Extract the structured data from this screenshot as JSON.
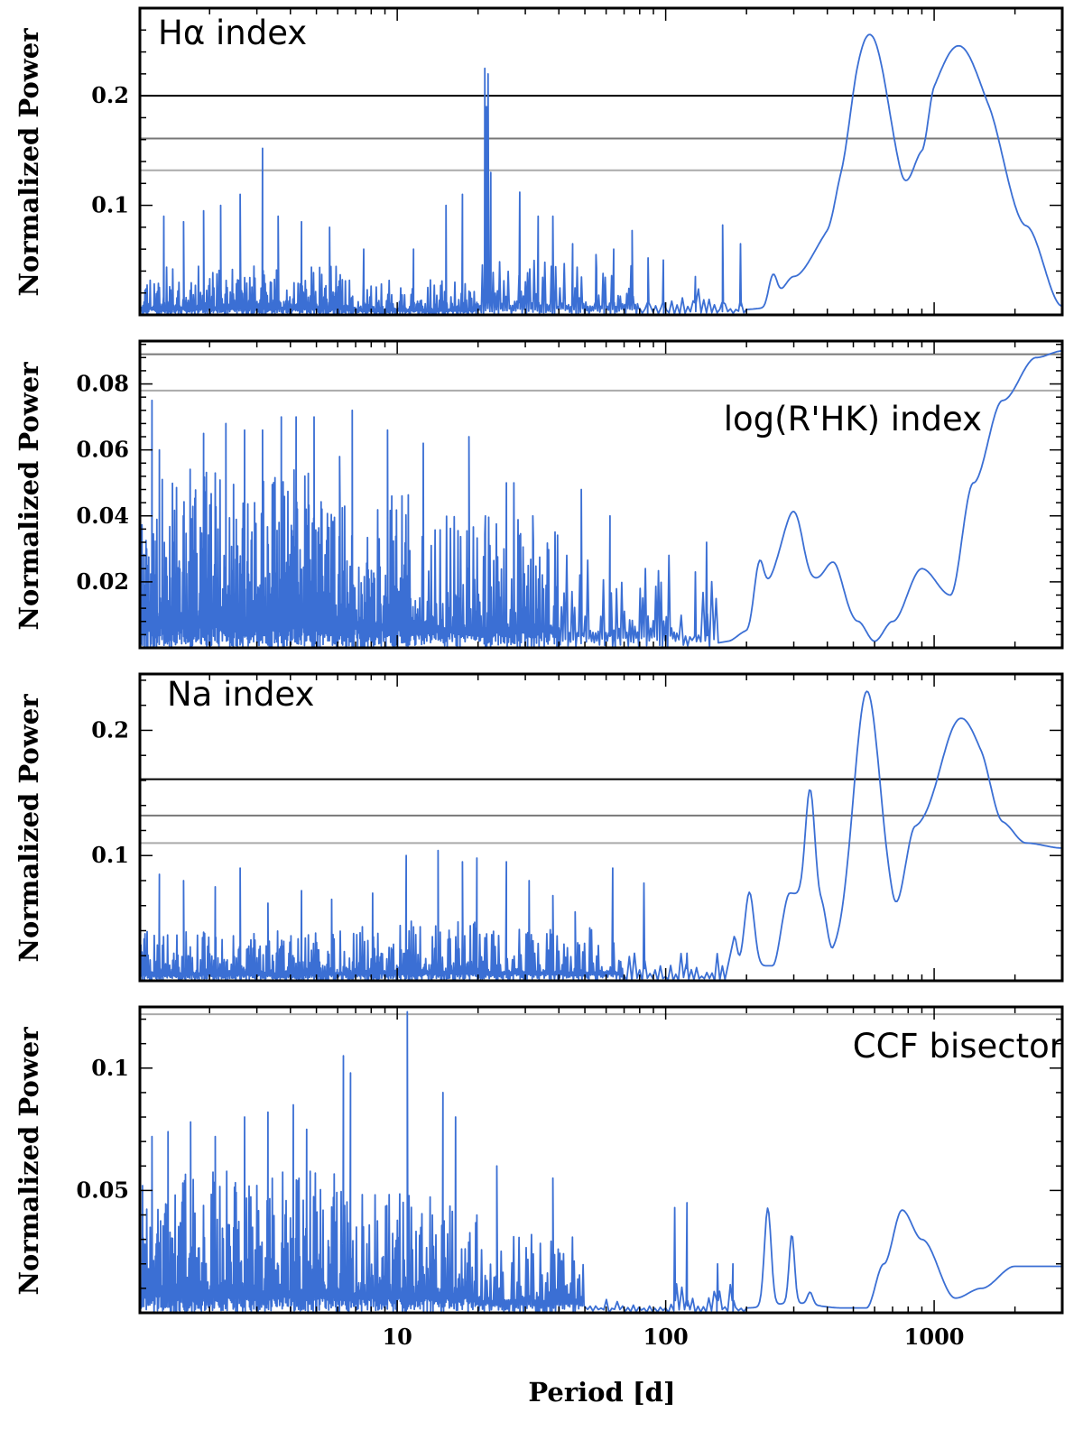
{
  "x_axis": {
    "title": "Period [d]",
    "scale": "log",
    "xlim": [
      1.1,
      3000
    ],
    "tick_labels": [
      {
        "value": 10,
        "label": "10"
      },
      {
        "value": 100,
        "label": "100"
      },
      {
        "value": 1000,
        "label": "1000"
      }
    ]
  },
  "colors": {
    "series": "#3b6fd4",
    "fap_strong": "#000000",
    "fap_medium": "#777777",
    "fap_weak": "#aaaaaa"
  },
  "chart_data": [
    {
      "type": "line",
      "title": "Hα index",
      "ylabel": "Normalized Power",
      "ylim": [
        0,
        0.28
      ],
      "yticks": [
        {
          "value": 0.1,
          "label": "0.1"
        },
        {
          "value": 0.2,
          "label": "0.2"
        }
      ],
      "fap_levels": [
        0.2,
        0.161,
        0.132
      ],
      "noise": [
        {
          "x0": 1.1,
          "x1": 7,
          "amp": 0.045,
          "n": 420,
          "seed": 11
        },
        {
          "x0": 7,
          "x1": 20,
          "amp": 0.032,
          "n": 190,
          "seed": 12
        },
        {
          "x0": 20,
          "x1": 80,
          "amp": 0.05,
          "n": 150,
          "seed": 13
        },
        {
          "x0": 80,
          "x1": 200,
          "amp": 0.03,
          "n": 40,
          "seed": 14
        }
      ],
      "spikes": [
        [
          1.35,
          0.09
        ],
        [
          1.6,
          0.085
        ],
        [
          1.9,
          0.095
        ],
        [
          2.2,
          0.1
        ],
        [
          2.6,
          0.11
        ],
        [
          3.15,
          0.152
        ],
        [
          3.6,
          0.09
        ],
        [
          4.4,
          0.085
        ],
        [
          5.6,
          0.08
        ],
        [
          7.5,
          0.06
        ],
        [
          11.5,
          0.06
        ],
        [
          15.2,
          0.1
        ],
        [
          17.5,
          0.11
        ],
        [
          21.2,
          0.225
        ],
        [
          21.5,
          0.19
        ],
        [
          21.8,
          0.22
        ],
        [
          22.3,
          0.13
        ],
        [
          28.6,
          0.112
        ],
        [
          33.5,
          0.09
        ],
        [
          38,
          0.09
        ],
        [
          45,
          0.065
        ],
        [
          55,
          0.055
        ],
        [
          64,
          0.06
        ],
        [
          75,
          0.077
        ],
        [
          86,
          0.052
        ],
        [
          98,
          0.05
        ],
        [
          129,
          0.035
        ],
        [
          163,
          0.082
        ],
        [
          190,
          0.065
        ]
      ],
      "smooth": {
        "base": [
          [
            200,
            0.005
          ],
          [
            230,
            0.006
          ],
          [
            260,
            0.02
          ],
          [
            300,
            0.035
          ],
          [
            400,
            0.065
          ],
          [
            450,
            0.085
          ],
          [
            520,
            0.11
          ],
          [
            750,
            0.07
          ],
          [
            900,
            0.12
          ],
          [
            1000,
            0.16
          ],
          [
            1600,
            0.15
          ],
          [
            2200,
            0.08
          ],
          [
            3000,
            0.008
          ]
        ],
        "peaks": [
          [
            590,
            0.155,
            0.15
          ],
          [
            1250,
            0.09,
            0.17
          ],
          [
            250,
            0.02,
            0.03
          ]
        ]
      }
    },
    {
      "type": "line",
      "title": "log(R'HK) index",
      "ylabel": "Normalized Power",
      "ylim": [
        0,
        0.093
      ],
      "yticks": [
        {
          "value": 0.02,
          "label": "0.02"
        },
        {
          "value": 0.04,
          "label": "0.04"
        },
        {
          "value": 0.06,
          "label": "0.06"
        },
        {
          "value": 0.08,
          "label": "0.08"
        }
      ],
      "fap_levels": [
        0.089,
        0.078
      ],
      "noise": [
        {
          "x0": 1.1,
          "x1": 5,
          "amp": 0.055,
          "n": 520,
          "seed": 21
        },
        {
          "x0": 5,
          "x1": 12,
          "amp": 0.048,
          "n": 260,
          "seed": 22
        },
        {
          "x0": 12,
          "x1": 40,
          "amp": 0.04,
          "n": 220,
          "seed": 23
        },
        {
          "x0": 40,
          "x1": 110,
          "amp": 0.03,
          "n": 90,
          "seed": 24
        },
        {
          "x0": 110,
          "x1": 160,
          "amp": 0.022,
          "n": 20,
          "seed": 25
        }
      ],
      "spikes": [
        [
          1.22,
          0.075
        ],
        [
          1.3,
          0.06
        ],
        [
          1.9,
          0.065
        ],
        [
          2.3,
          0.068
        ],
        [
          2.7,
          0.066
        ],
        [
          3.15,
          0.066
        ],
        [
          3.7,
          0.07
        ],
        [
          4.2,
          0.07
        ],
        [
          4.9,
          0.07
        ],
        [
          6.1,
          0.058
        ],
        [
          6.8,
          0.072
        ],
        [
          9.2,
          0.066
        ],
        [
          12.5,
          0.062
        ],
        [
          18.5,
          0.064
        ],
        [
          21.3,
          0.04
        ],
        [
          25.5,
          0.05
        ],
        [
          27.2,
          0.05
        ],
        [
          32,
          0.04
        ],
        [
          48.5,
          0.048
        ],
        [
          62,
          0.04
        ],
        [
          129,
          0.023
        ],
        [
          142,
          0.032
        ]
      ],
      "smooth": {
        "base": [
          [
            170,
            0.002
          ],
          [
            200,
            0.005
          ],
          [
            230,
            0.018
          ],
          [
            280,
            0.03
          ],
          [
            350,
            0.02
          ],
          [
            420,
            0.02
          ],
          [
            520,
            0.008
          ],
          [
            600,
            0.002
          ],
          [
            700,
            0.008
          ],
          [
            900,
            0.024
          ],
          [
            1150,
            0.016
          ],
          [
            1400,
            0.05
          ],
          [
            1800,
            0.075
          ],
          [
            2400,
            0.088
          ],
          [
            3000,
            0.09
          ]
        ],
        "peaks": [
          [
            305,
            0.014,
            0.06
          ],
          [
            222,
            0.01,
            0.035
          ],
          [
            420,
            0.006,
            0.06
          ]
        ]
      }
    },
    {
      "type": "line",
      "title": "Na index",
      "ylabel": "Normalized Power",
      "ylim": [
        0,
        0.245
      ],
      "yticks": [
        {
          "value": 0.1,
          "label": "0.1"
        },
        {
          "value": 0.2,
          "label": "0.2"
        }
      ],
      "fap_levels": [
        0.161,
        0.132,
        0.11
      ],
      "noise": [
        {
          "x0": 1.1,
          "x1": 7,
          "amp": 0.04,
          "n": 420,
          "seed": 31
        },
        {
          "x0": 7,
          "x1": 20,
          "amp": 0.048,
          "n": 220,
          "seed": 32
        },
        {
          "x0": 20,
          "x1": 70,
          "amp": 0.045,
          "n": 170,
          "seed": 33
        },
        {
          "x0": 70,
          "x1": 170,
          "amp": 0.022,
          "n": 40,
          "seed": 34
        }
      ],
      "spikes": [
        [
          1.3,
          0.085
        ],
        [
          1.6,
          0.08
        ],
        [
          2.1,
          0.075
        ],
        [
          2.6,
          0.09
        ],
        [
          3.3,
          0.062
        ],
        [
          4.4,
          0.072
        ],
        [
          5.7,
          0.065
        ],
        [
          8.1,
          0.07
        ],
        [
          10.8,
          0.1
        ],
        [
          14.2,
          0.104
        ],
        [
          17.5,
          0.095
        ],
        [
          19.8,
          0.098
        ],
        [
          25.5,
          0.095
        ],
        [
          31,
          0.08
        ],
        [
          38,
          0.068
        ],
        [
          46,
          0.055
        ],
        [
          63.5,
          0.09
        ],
        [
          83,
          0.078
        ],
        [
          120,
          0.022
        ]
      ],
      "smooth": {
        "base": [
          [
            180,
            0.01
          ],
          [
            250,
            0.012
          ],
          [
            290,
            0.07
          ],
          [
            380,
            0.06
          ],
          [
            420,
            0.018
          ],
          [
            700,
            0.04
          ],
          [
            850,
            0.12
          ],
          [
            1500,
            0.16
          ],
          [
            1800,
            0.125
          ],
          [
            2200,
            0.11
          ],
          [
            3000,
            0.106
          ]
        ],
        "peaks": [
          [
            345,
            0.09,
            0.035
          ],
          [
            560,
            0.2,
            0.1
          ],
          [
            1220,
            0.06,
            0.13
          ],
          [
            205,
            0.06,
            0.035
          ],
          [
            180,
            0.025,
            0.02
          ]
        ]
      }
    },
    {
      "type": "line",
      "title": "CCF bisector",
      "ylabel": "Normalized Power",
      "ylim": [
        0,
        0.125
      ],
      "yticks": [
        {
          "value": 0.05,
          "label": "0.05"
        },
        {
          "value": 0.1,
          "label": "0.1"
        }
      ],
      "fap_levels": [
        0.122
      ],
      "noise": [
        {
          "x0": 1.1,
          "x1": 6,
          "amp": 0.058,
          "n": 460,
          "seed": 41
        },
        {
          "x0": 6,
          "x1": 20,
          "amp": 0.05,
          "n": 240,
          "seed": 42
        },
        {
          "x0": 20,
          "x1": 50,
          "amp": 0.032,
          "n": 120,
          "seed": 43
        },
        {
          "x0": 50,
          "x1": 200,
          "amp": 0.012,
          "n": 60,
          "seed": 44
        }
      ],
      "spikes": [
        [
          1.22,
          0.072
        ],
        [
          1.4,
          0.074
        ],
        [
          1.7,
          0.078
        ],
        [
          2.1,
          0.072
        ],
        [
          2.7,
          0.08
        ],
        [
          3.3,
          0.082
        ],
        [
          4.1,
          0.085
        ],
        [
          4.6,
          0.075
        ],
        [
          6.3,
          0.105
        ],
        [
          6.7,
          0.098
        ],
        [
          10.9,
          0.123
        ],
        [
          14.8,
          0.09
        ],
        [
          16.5,
          0.08
        ],
        [
          23.5,
          0.06
        ],
        [
          38,
          0.055
        ],
        [
          108,
          0.043
        ],
        [
          120,
          0.045
        ],
        [
          156,
          0.02
        ],
        [
          178,
          0.02
        ]
      ],
      "smooth": {
        "base": [
          [
            200,
            0.002
          ],
          [
            300,
            0.004
          ],
          [
            450,
            0.002
          ],
          [
            560,
            0.002
          ],
          [
            650,
            0.02
          ],
          [
            760,
            0.042
          ],
          [
            900,
            0.03
          ],
          [
            1200,
            0.006
          ],
          [
            1500,
            0.01
          ],
          [
            2000,
            0.019
          ],
          [
            3000,
            0.019
          ]
        ],
        "peaks": [
          [
            240,
            0.04,
            0.025
          ],
          [
            295,
            0.028,
            0.02
          ],
          [
            345,
            0.005,
            0.02
          ]
        ]
      }
    }
  ]
}
